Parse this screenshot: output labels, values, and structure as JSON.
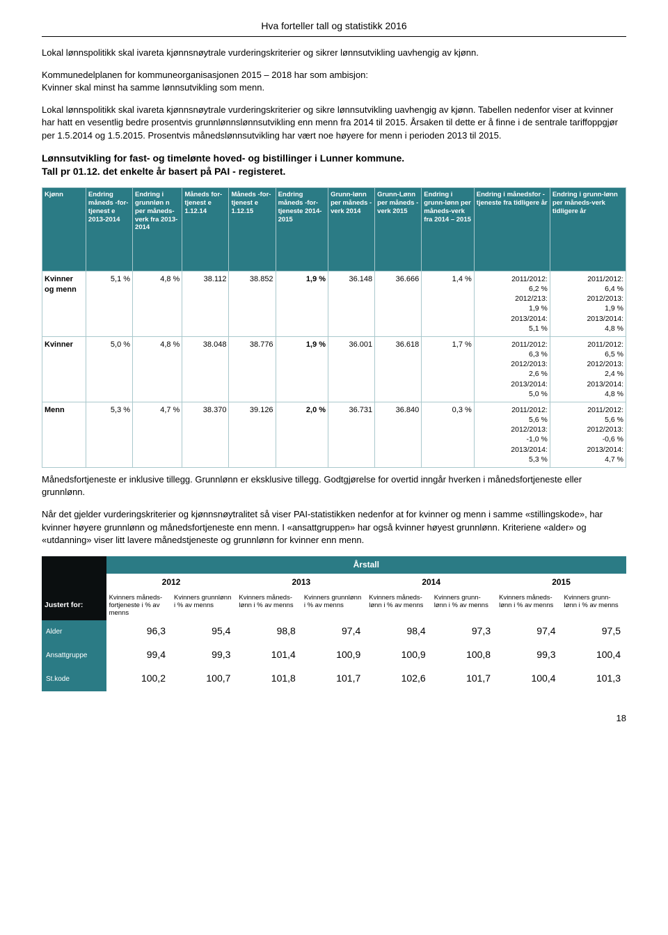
{
  "header": {
    "title": "Hva forteller tall og statistikk 2016"
  },
  "paragraphs": {
    "p1": "Lokal lønnspolitikk skal ivareta kjønnsnøytrale vurderingskriterier og sikrer lønnsutvikling uavhengig av kjønn.",
    "p2a": "Kommunedelplanen for kommuneorganisasjonen 2015 – 2018 har som ambisjon:",
    "p2b": "Kvinner skal minst ha samme lønnsutvikling som menn.",
    "p3": "Lokal lønnspolitikk skal ivareta kjønnsnøytrale vurderingskriterier og sikre lønnsutvikling uavhengig av kjønn. Tabellen nedenfor viser at kvinner har hatt en vesentlig bedre prosentvis grunnlønnslønnsutvikling enn menn fra 2014 til 2015. Årsaken til dette er å finne i de sentrale tariffoppgjør per 1.5.2014 og 1.5.2015. Prosentvis månedslønnsutvikling har  vært noe høyere for menn i perioden 2013 til 2015.",
    "sec1a": "Lønnsutvikling for fast- og timelønte hoved- og bistillinger i Lunner kommune.",
    "sec1b": "Tall pr 01.12. det enkelte år basert på PAI - registeret.",
    "p4": "Månedsfortjeneste er inklusive tillegg. Grunnlønn er eksklusive tillegg. Godtgjørelse for overtid inngår hverken i månedsfortjeneste eller grunnlønn.",
    "p5": "Når det gjelder vurderingskriterier og kjønnsnøytralitet så viser PAI-statistikken nedenfor at for kvinner og menn i samme «stillingskode», har kvinner høyere grunnlønn og månedsfortjeneste enn menn. I «ansattgruppen» har også kvinner høyest grunnlønn. Kriteriene «alder» og «utdanning» viser litt lavere månedstjeneste og grunnlønn for kvinner enn menn."
  },
  "table1": {
    "colors": {
      "header_bg": "#2b7b85",
      "header_fg": "#ffffff",
      "border": "#a9c8cc"
    },
    "headers": [
      "Kjønn",
      "Endring måneds -for-tjenest e 2013-2014",
      "Endring i grunnløn n per måneds-verk fra 2013-2014",
      "Måneds for-tjenest e 1.12.14",
      "Måneds -for-tjenest e 1.12.15",
      "Endring måneds -for-tjeneste 2014-2015",
      "Grunn-lønn per måneds -verk 2014",
      "Grunn-Lønn per måneds - verk 2015",
      "Endring i grunn-lønn per måneds-verk fra 2014 – 2015",
      "Endring i månedsfor - tjeneste fra tidligere år",
      "Endring i grunn-lønn per måneds-verk tidligere år"
    ],
    "rows": [
      {
        "label": "Kvinner og menn",
        "c1": "5,1 %",
        "c2": "4,8 %",
        "c3": "38.112",
        "c4": "38.852",
        "c5": "1,9 %",
        "c6": "36.148",
        "c7": "36.666",
        "c8": "1,4 %",
        "c9": "2011/2012:\n6,2 %\n2012/213:\n1,9 %\n2013/2014:\n5,1 %",
        "c10": "2011/2012:\n6,4 %\n2012/2013:\n1,9 %\n2013/2014:\n4,8 %"
      },
      {
        "label": "Kvinner",
        "c1": "5,0 %",
        "c2": "4,8 %",
        "c3": "38.048",
        "c4": "38.776",
        "c5": "1,9 %",
        "c6": "36.001",
        "c7": "36.618",
        "c8": "1,7 %",
        "c9": "2011/2012:\n6,3 %\n2012/2013:\n2,6 %\n2013/2014:\n5,0 %",
        "c10": "2011/2012:\n6,5 %\n2012/2013:\n2,4 %\n2013/2014:\n4,8 %"
      },
      {
        "label": "Menn",
        "c1": "5,3 %",
        "c2": "4,7 %",
        "c3": "38.370",
        "c4": "39.126",
        "c5": "2,0 %",
        "c6": "36.731",
        "c7": "36.840",
        "c8": "0,3 %",
        "c9": "2011/2012:\n5,6 %\n2012/2013:\n-1,0 %\n2013/2014:\n5,3 %",
        "c10": "2011/2012:\n5,6 %\n2012/2013:\n-0,6 %\n2013/2014:\n4,7 %"
      }
    ]
  },
  "table2": {
    "arstall_label": "Årstall",
    "years": [
      "2012",
      "2013",
      "2014",
      "2015"
    ],
    "rowhead": "Justert for:",
    "subheaders": [
      "Kvinners måneds-fortjeneste i % av menns",
      "Kvinners grunnlønn i % av menns",
      "Kvinners måneds-lønn i % av menns",
      "Kvinners grunnlønn i % av menns",
      "Kvinners måneds-lønn i % av menns",
      "Kvinners grunn-lønn i % av menns",
      "Kvinners måneds-lønn i % av menns",
      "Kvinners grunn-lønn i % av menns"
    ],
    "rows": [
      {
        "label": "Alder",
        "v": [
          "96,3",
          "95,4",
          "98,8",
          "97,4",
          "98,4",
          "97,3",
          "97,4",
          "97,5"
        ]
      },
      {
        "label": "Ansattgruppe",
        "v": [
          "99,4",
          "99,3",
          "101,4",
          "100,9",
          "100,9",
          "100,8",
          "99,3",
          "100,4"
        ]
      },
      {
        "label": "St.kode",
        "v": [
          "100,2",
          "100,7",
          "101,8",
          "101,7",
          "102,6",
          "101,7",
          "100,4",
          "101,3"
        ]
      }
    ]
  },
  "page_number": "18"
}
